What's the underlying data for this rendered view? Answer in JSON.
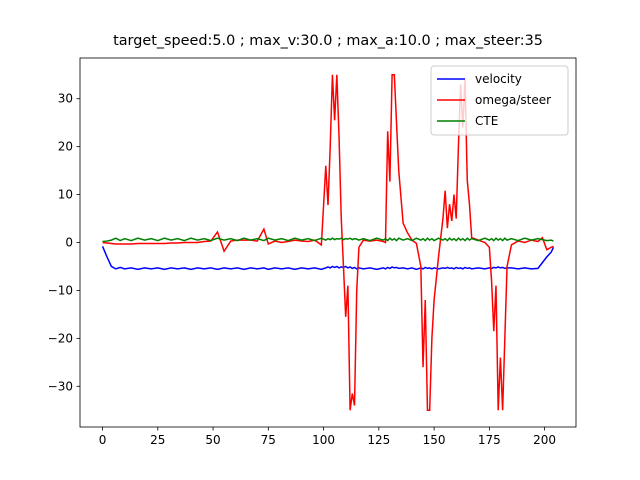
{
  "chart_data": {
    "type": "line",
    "title": "target_speed:5.0 ; max_v:30.0 ; max_a:10.0 ; max_steer:35",
    "x": [
      0,
      2,
      4,
      6,
      8,
      10,
      13,
      16,
      19,
      22,
      25,
      28,
      31,
      34,
      37,
      40,
      43,
      46,
      49,
      52,
      55,
      58,
      61,
      64,
      67,
      70,
      73,
      75,
      78,
      81,
      84,
      87,
      90,
      93,
      96,
      99,
      101,
      102,
      103,
      104,
      105,
      106,
      107,
      108,
      109,
      110,
      111,
      112,
      113,
      114,
      115,
      116,
      118,
      121,
      124,
      127,
      128,
      129,
      130,
      131,
      132,
      133,
      134,
      136,
      138,
      140,
      142,
      144,
      145,
      146,
      147,
      148,
      149,
      150,
      152,
      154,
      155,
      156,
      157,
      158,
      159,
      160,
      161,
      162,
      163,
      164,
      165,
      166,
      167,
      170,
      173,
      175,
      176,
      177,
      178,
      179,
      180,
      181,
      182,
      183,
      185,
      188,
      191,
      194,
      197,
      199,
      201,
      203,
      204
    ],
    "series": [
      {
        "name": "velocity",
        "color": "#0000ff",
        "values": [
          -0.8,
          -3,
          -5,
          -5.5,
          -5.2,
          -5.5,
          -5.3,
          -5.6,
          -5.3,
          -5.5,
          -5.3,
          -5.6,
          -5.3,
          -5.5,
          -5.3,
          -5.6,
          -5.3,
          -5.5,
          -5.3,
          -5.6,
          -5.3,
          -5.5,
          -5.3,
          -5.6,
          -5.3,
          -5.5,
          -5.3,
          -5.6,
          -5.3,
          -5.5,
          -5.3,
          -5.6,
          -5.3,
          -5.5,
          -5.3,
          -5.6,
          -5.3,
          -5.1,
          -5.3,
          -5.0,
          -5.2,
          -5.0,
          -5.3,
          -5.1,
          -5.2,
          -5.0,
          -5.3,
          -5.1,
          -5.4,
          -5.2,
          -5.5,
          -5.3,
          -5.5,
          -5.3,
          -5.6,
          -5.3,
          -5.5,
          -5.2,
          -5.4,
          -5.1,
          -5.3,
          -5.2,
          -5.4,
          -5.3,
          -5.5,
          -5.3,
          -5.6,
          -5.3,
          -5.5,
          -5.2,
          -5.4,
          -5.3,
          -5.5,
          -5.3,
          -5.5,
          -5.3,
          -5.4,
          -5.2,
          -5.4,
          -5.3,
          -5.5,
          -5.2,
          -5.4,
          -5.3,
          -5.5,
          -5.2,
          -5.4,
          -5.3,
          -5.5,
          -5.3,
          -5.5,
          -5.3,
          -5.4,
          -5.2,
          -5.3,
          -5.1,
          -5.3,
          -5.2,
          -5.4,
          -5.3,
          -5.3,
          -5.5,
          -5.3,
          -5.5,
          -5.4,
          -4.2,
          -3,
          -2,
          -1
        ]
      },
      {
        "name": "omega/steer",
        "color": "#ff0000",
        "values": [
          0,
          -0.1,
          -0.2,
          -0.3,
          -0.3,
          -0.3,
          -0.3,
          -0.2,
          -0.2,
          -0.2,
          -0.2,
          -0.2,
          -0.1,
          -0.1,
          0,
          0,
          0,
          0.2,
          0.3,
          2.2,
          -1.8,
          0.3,
          0.5,
          0.5,
          0.5,
          0.3,
          2.8,
          -0.3,
          0.3,
          0,
          0.2,
          0.5,
          0.3,
          0.2,
          0.5,
          -0.5,
          16,
          7.8,
          20,
          35,
          25.5,
          35,
          22,
          5,
          -5,
          -15.5,
          -9,
          -35,
          -31.5,
          -34,
          -10,
          -1,
          0.5,
          0.3,
          0.5,
          0.2,
          0,
          23.2,
          12.7,
          35,
          35,
          25,
          15,
          4,
          2,
          0.5,
          -0.2,
          -5,
          -26,
          -12,
          -35,
          -35,
          -20,
          -12,
          -3,
          5,
          10.8,
          3,
          8,
          4.5,
          10,
          5,
          20,
          33,
          24,
          34,
          13,
          8,
          1,
          0.5,
          0,
          -1,
          -8,
          -18.5,
          -9,
          -35,
          -24,
          -35,
          -20,
          -5,
          -0.5,
          0.3,
          0,
          0.5,
          0.2,
          1,
          -1.5,
          -1,
          -0.8
        ]
      },
      {
        "name": "CTE",
        "color": "#008000",
        "values": [
          0.2,
          0.3,
          0.5,
          0.9,
          0.4,
          0.8,
          0.4,
          0.9,
          0.5,
          0.8,
          0.4,
          0.9,
          0.5,
          0.8,
          0.4,
          0.9,
          0.5,
          0.8,
          0.4,
          0.9,
          0.5,
          0.8,
          0.4,
          0.9,
          0.5,
          0.8,
          0.4,
          0.9,
          0.5,
          0.8,
          0.4,
          0.9,
          0.5,
          0.8,
          0.4,
          0.9,
          0.5,
          0.8,
          0.6,
          0.9,
          0.6,
          0.8,
          0.7,
          0.9,
          0.6,
          0.8,
          0.7,
          0.9,
          0.6,
          0.8,
          0.7,
          0.5,
          0.8,
          0.4,
          0.9,
          0.5,
          0.8,
          0.4,
          0.9,
          0.5,
          0.8,
          0.4,
          0.9,
          0.5,
          0.8,
          0.4,
          0.9,
          0.5,
          0.8,
          0.4,
          0.9,
          0.5,
          0.8,
          0.4,
          0.9,
          0.5,
          0.8,
          0.4,
          0.9,
          0.5,
          0.8,
          0.4,
          0.9,
          0.5,
          0.8,
          0.4,
          0.9,
          0.5,
          0.8,
          0.4,
          0.9,
          0.5,
          0.8,
          0.4,
          0.9,
          0.5,
          0.8,
          0.4,
          0.9,
          0.5,
          0.8,
          0.4,
          0.9,
          0.5,
          0.8,
          0.6,
          0.4,
          0.5,
          0.3
        ]
      }
    ],
    "xlim": [
      -10.2,
      214.2
    ],
    "ylim": [
      -38.5,
      38.5
    ],
    "xticks": [
      0,
      25,
      50,
      75,
      100,
      125,
      150,
      175,
      200
    ],
    "yticks": [
      {
        "value": -30,
        "label": "−30"
      },
      {
        "value": -20,
        "label": "−20"
      },
      {
        "value": -10,
        "label": "−10"
      },
      0,
      10,
      20,
      30
    ],
    "legend": "upper right"
  }
}
